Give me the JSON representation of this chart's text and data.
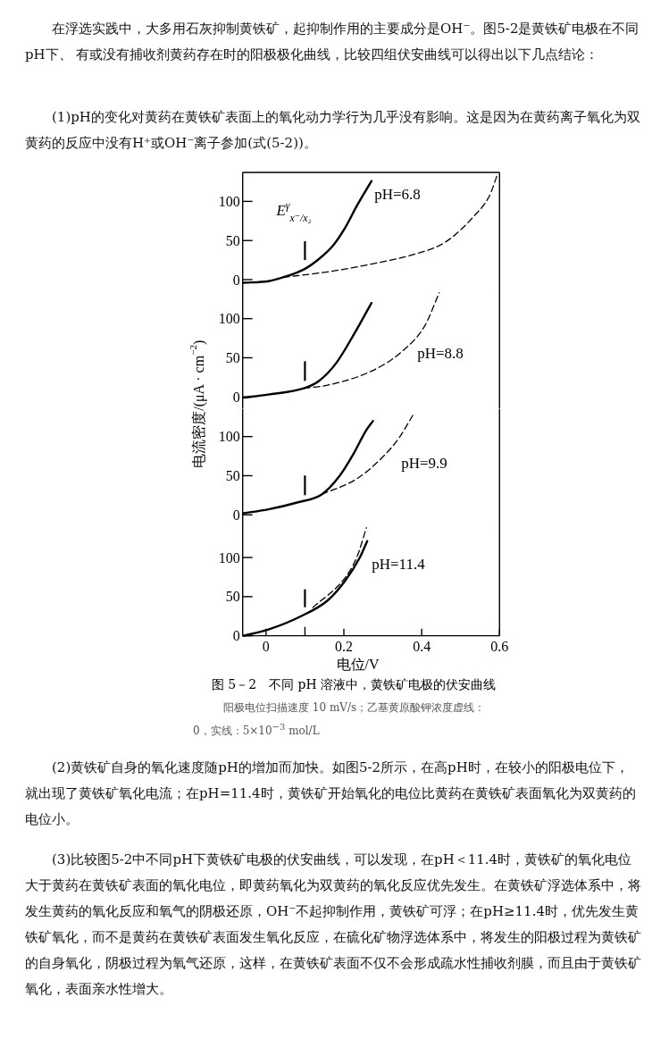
{
  "chart_data": [
    {
      "type": "line",
      "title": "pH=6.8",
      "xlim": [
        -0.06,
        0.6
      ],
      "ylim": [
        -15,
        137
      ],
      "yticks": [
        0,
        50,
        100
      ],
      "tick_labels": "y",
      "ref_lines": [
        {
          "axis": "x",
          "value": 0.1,
          "label": "E$^{γ}$$_{x⁻/x₂}$"
        }
      ],
      "series": [
        {
          "color": "#000000",
          "line_style": "solid",
          "x": [
            -0.058,
            0.006,
            0.044,
            0.097,
            0.135,
            0.173,
            0.203,
            0.233,
            0.271
          ],
          "values": [
            -4,
            -2,
            3,
            13,
            26,
            44,
            66,
            94,
            126
          ]
        },
        {
          "color": "#000000",
          "line_style": "dashed",
          "x": [
            0.044,
            0.158,
            0.271,
            0.385,
            0.461,
            0.536,
            0.574,
            0.595
          ],
          "values": [
            3,
            10,
            20,
            33,
            48,
            82,
            107,
            135
          ]
        }
      ],
      "annotations": [
        "在浮选实践中，大多用石灰抑制黄铁矿，起抑制作用的主要成分是OH⁻。图5-2是黄铁矿电极在不同pH下、 有或没有捕收剂黄药存在时的阳极极化曲线，比较四组伏安曲线可以得出以下几点结论：",
        "(1)pH的变化对黄药在黄铁矿表面上的氧化动力学行为几乎没有影响。这是因为在黄药离子氧化为双黄药的反应中没有H⁺或OH⁻离子参加(式(5-2))。"
      ]
    },
    {
      "type": "line",
      "title": "pH=8.8",
      "ylabel": "电流密度/(μA · cm$^{−2}$)",
      "xlim": [
        -0.06,
        0.6
      ],
      "ylim": [
        -15,
        135
      ],
      "yticks": [
        0,
        50,
        100
      ],
      "tick_labels": "y",
      "ref_lines": [
        {
          "axis": "x",
          "value": 0.1
        }
      ],
      "series": [
        {
          "color": "#000000",
          "line_style": "solid",
          "x": [
            -0.058,
            0.006,
            0.097,
            0.135,
            0.18,
            0.226,
            0.271
          ],
          "values": [
            -1,
            3,
            11,
            20,
            43,
            80,
            120
          ]
        },
        {
          "color": "#000000",
          "line_style": "dashed",
          "x": [
            0.097,
            0.158,
            0.271,
            0.347,
            0.408,
            0.445
          ],
          "values": [
            11,
            15,
            33,
            57,
            91,
            133
          ]
        }
      ]
    },
    {
      "type": "line",
      "title": "pH=9.9",
      "xlim": [
        -0.06,
        0.6
      ],
      "ylim": [
        -15,
        135
      ],
      "yticks": [
        0,
        50,
        100
      ],
      "tick_labels": "y",
      "ref_lines": [
        {
          "axis": "x",
          "value": 0.1
        }
      ],
      "series": [
        {
          "color": "#000000",
          "line_style": "solid",
          "x": [
            -0.058,
            0.006,
            0.082,
            0.143,
            0.188,
            0.226,
            0.256,
            0.275
          ],
          "values": [
            2,
            7,
            16,
            26,
            49,
            79,
            107,
            120
          ]
        },
        {
          "color": "#000000",
          "line_style": "dashed",
          "x": [
            0.143,
            0.233,
            0.294,
            0.34,
            0.377
          ],
          "values": [
            26,
            46,
            71,
            97,
            127
          ]
        }
      ]
    },
    {
      "type": "line",
      "title": "pH=11.4",
      "xlabel": "电位/V",
      "xlim": [
        -0.06,
        0.6
      ],
      "xticks": [
        0,
        {
          "value": 0.1,
          "label": null
        },
        0.2,
        0.4,
        0.6
      ],
      "ylim": [
        0,
        140
      ],
      "yticks": [
        0,
        50,
        100
      ],
      "ref_lines": [
        {
          "axis": "x",
          "value": 0.1
        }
      ],
      "series": [
        {
          "color": "#000000",
          "line_style": "solid",
          "x": [
            -0.058,
            0.006,
            0.09,
            0.158,
            0.203,
            0.241,
            0.26
          ],
          "values": [
            0,
            8,
            25,
            45,
            70,
            100,
            121
          ]
        },
        {
          "color": "#000000",
          "line_style": "dashed",
          "x": [
            0.12,
            0.203,
            0.233,
            0.258
          ],
          "values": [
            36,
            74,
            100,
            138
          ]
        }
      ],
      "annotations": [
        "图 5－2　不同 pH 溶液中，黄铁矿电极的伏安曲线",
        "阳极电位扫描速度 10 mV/s；乙基黄原酸钾浓度虚线：0，实线：5×10$^{−3}$ mol/L",
        "(2)黄铁矿自身的氧化速度随pH的增加而加快。如图5-2所示，在高pH时，在较小的阳极电位下，就出现了黄铁矿氧化电流；在pH=11.4时，黄铁矿开始氧化的电位比黄药在黄铁矿表面氧化为双黄药的电位小。",
        "(3)比较图5-2中不同pH下黄铁矿电极的伏安曲线，可以发现，在pH＜11.4时，黄铁矿的氧化电位大于黄药在黄铁矿表面的氧化电位，即黄药氧化为双黄药的氧化反应优先发生。在黄铁矿浮选体系中，将发生黄药的氧化反应和氧气的阴极还原，OH⁻不起抑制作用，黄铁矿可浮；在pH≥11.4时，优先发生黄铁矿氧化，而不是黄药在黄铁矿表面发生氧化反应，在硫化矿物浮选体系中，将发生的阳极过程为黄铁矿的自身氧化，阴极过程为氧气还原，这样，在黄铁矿表面不仅不会形成疏水性捕收剂膜，而且由于黄铁矿氧化，表面亲水性增大。"
      ]
    }
  ]
}
